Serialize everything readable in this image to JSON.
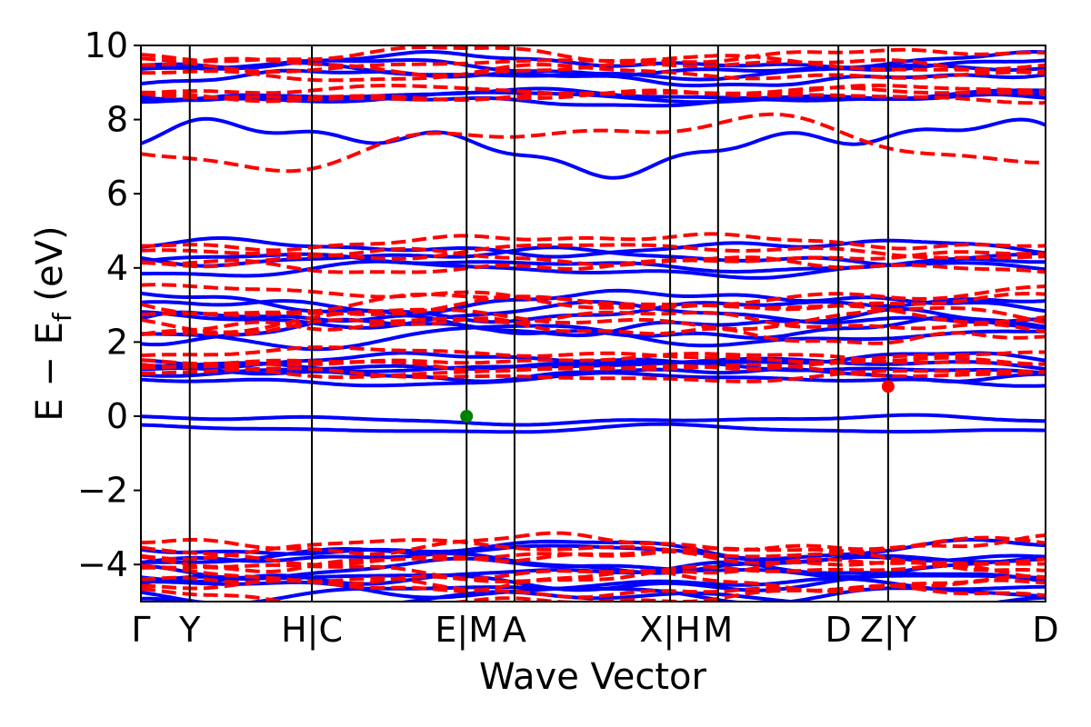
{
  "chart_data": {
    "type": "line",
    "title": "",
    "xlabel": "Wave Vector",
    "ylabel_main": "E − E",
    "ylabel_sub": "f",
    "ylabel_unit": " (eV)",
    "ylim": [
      -5,
      10
    ],
    "yticks": [
      {
        "value": -4,
        "label": "−4"
      },
      {
        "value": -2,
        "label": "−2"
      },
      {
        "value": 0,
        "label": "0"
      },
      {
        "value": 2,
        "label": "2"
      },
      {
        "value": 4,
        "label": "4"
      },
      {
        "value": 6,
        "label": "6"
      },
      {
        "value": 8,
        "label": "8"
      },
      {
        "value": 10,
        "label": "10"
      }
    ],
    "xlim": [
      0,
      10
    ],
    "kpoint_positions": [
      0,
      0.54,
      1.89,
      3.6,
      4.13,
      5.85,
      6.38,
      7.71,
      8.26,
      10
    ],
    "xtick_labels": [
      "Γ",
      "Y",
      "H|C",
      "E|M",
      "A",
      "X|H",
      "M",
      "D",
      "Z|Y",
      "D"
    ],
    "series": [
      {
        "color": "#0000ff",
        "style": "solid"
      },
      {
        "color": "#ff0000",
        "style": "dashed"
      }
    ],
    "special_points": [
      {
        "x": 3.6,
        "y": 0.0,
        "color": "#008000"
      },
      {
        "x": 8.26,
        "y": 0.8,
        "color": "#ff0000"
      }
    ]
  }
}
